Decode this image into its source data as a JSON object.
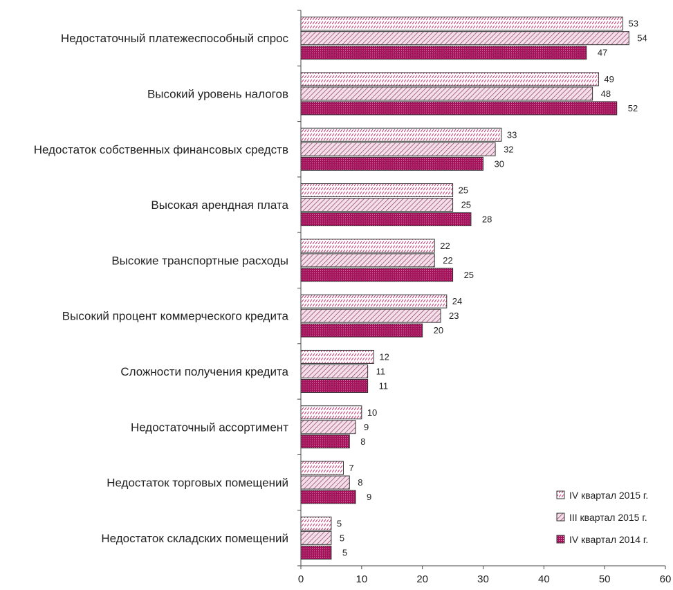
{
  "chart_data": {
    "type": "bar",
    "orientation": "horizontal",
    "categories": [
      "Недостаточный платежеспособный спрос",
      "Высокий уровень налогов",
      "Недостаток собственных финансовых средств",
      "Высокая арендная плата",
      "Высокие транспортные расходы",
      "Высокий процент коммерческого кредита",
      "Сложности получения кредита",
      "Недостаточный ассортимент",
      "Недостаток торговых помещений",
      "Недостаток складских помещений"
    ],
    "series": [
      {
        "name": "IV квартал 2015 г.",
        "values": [
          53,
          49,
          33,
          25,
          22,
          24,
          12,
          10,
          7,
          5
        ],
        "color": "#c2185b",
        "pattern": "dots"
      },
      {
        "name": "III квартал 2015 г.",
        "values": [
          54,
          48,
          32,
          25,
          22,
          23,
          11,
          9,
          8,
          5
        ],
        "color": "#8e3a6b",
        "pattern": "hatch"
      },
      {
        "name": "IV квартал 2014 г.",
        "values": [
          47,
          52,
          30,
          28,
          25,
          20,
          11,
          8,
          9,
          5
        ],
        "color": "#a4135c",
        "pattern": "dense"
      }
    ],
    "xlim": [
      0,
      60
    ],
    "xticks": [
      "0",
      "10",
      "20",
      "30",
      "40",
      "50",
      "60"
    ],
    "title": "",
    "xlabel": "",
    "ylabel": "",
    "legend": "bottom-right",
    "grid": false
  }
}
